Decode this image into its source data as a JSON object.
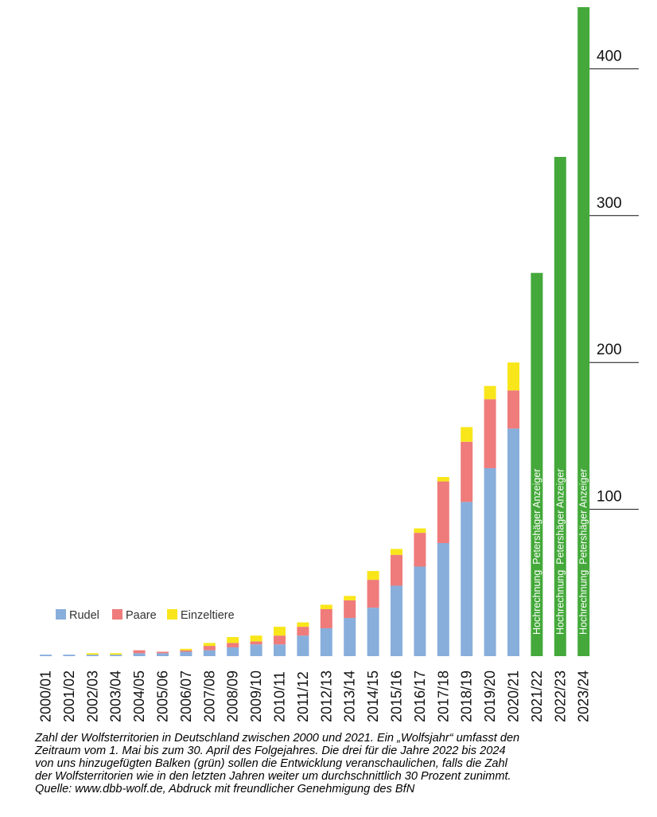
{
  "chart_data": {
    "type": "bar",
    "stacked": true,
    "categories": [
      "2000/01",
      "2001/02",
      "2002/03",
      "2003/04",
      "2004/05",
      "2005/06",
      "2006/07",
      "2007/08",
      "2008/09",
      "2009/10",
      "2010/11",
      "2011/12",
      "2012/13",
      "2013/14",
      "2014/15",
      "2015/16",
      "2016/17",
      "2017/18",
      "2018/19",
      "2019/20",
      "2020/21",
      "2021/22",
      "2022/23",
      "2023/24"
    ],
    "series": [
      {
        "name": "Rudel",
        "color": "#88aedc",
        "values": [
          1,
          1,
          1,
          1,
          2,
          2,
          3,
          4,
          6,
          8,
          8,
          14,
          19,
          26,
          33,
          48,
          61,
          77,
          105,
          128,
          155,
          0,
          0,
          0
        ]
      },
      {
        "name": "Paare",
        "color": "#ef7b7b",
        "values": [
          0,
          0,
          0,
          0,
          2,
          1,
          1,
          3,
          3,
          2,
          6,
          6,
          13,
          12,
          19,
          21,
          23,
          42,
          41,
          47,
          26,
          0,
          0,
          0
        ]
      },
      {
        "name": "Einzeltiere",
        "color": "#f8e61a",
        "values": [
          0,
          0,
          1,
          1,
          0,
          0,
          1,
          2,
          4,
          4,
          6,
          3,
          3,
          3,
          6,
          4,
          3,
          3,
          10,
          9,
          19,
          0,
          0,
          0
        ]
      },
      {
        "color": "#44a93a",
        "values": [
          0,
          0,
          0,
          0,
          0,
          0,
          0,
          0,
          0,
          0,
          0,
          0,
          0,
          0,
          0,
          0,
          0,
          0,
          0,
          0,
          0,
          261,
          340,
          442
        ]
      }
    ],
    "bar_annotation": "Hochrechnung  Petershäger Anzeiger",
    "annotated_bars": [
      "2021/22",
      "2022/23",
      "2023/24"
    ],
    "ylim": [
      0,
      442
    ],
    "yticks": [
      100,
      200,
      300,
      400
    ],
    "ytick_labels": [
      "100",
      "200",
      "300",
      "400"
    ],
    "yaxis_position": "right",
    "xlabel": "",
    "ylabel": "",
    "legend_position": "bottom-left"
  },
  "caption": [
    "Zahl der Wolfsterritorien in Deutschland zwischen 2000 und 2021. Ein „Wolfsjahr“ umfasst den",
    "Zeitraum vom 1. Mai bis zum 30. April des Folgejahres. Die drei für die Jahre 2022 bis 2024",
    "von uns hinzugefügten Balken (grün) sollen die Entwicklung veranschaulichen, falls die Zahl",
    "der Wolfsterritorien wie in den letzten Jahren weiter um durchschnittlich 30 Prozent zunimmt.",
    "Quelle: www.dbb-wolf.de, Abdruck mit freundlicher Genehmigung des BfN"
  ]
}
